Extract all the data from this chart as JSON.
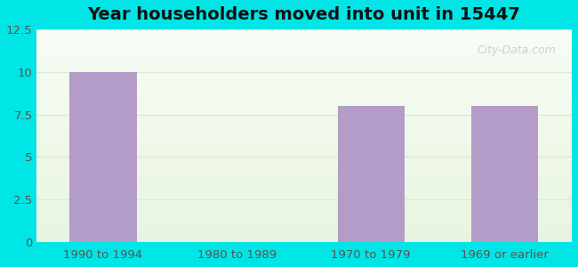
{
  "title": "Year householders moved into unit in 15447",
  "categories": [
    "1990 to 1994",
    "1980 to 1989",
    "1970 to 1979",
    "1969 or earlier"
  ],
  "values": [
    10,
    0,
    8,
    8
  ],
  "bar_color": "#b39cc8",
  "ylim": [
    0,
    12.5
  ],
  "yticks": [
    0,
    2.5,
    5,
    7.5,
    10,
    12.5
  ],
  "background_outer": "#00e5e5",
  "background_inner_top": "#f5faf0",
  "background_inner_bottom": "#e8f4e0",
  "grid_color": "#d8ecd0",
  "title_fontsize": 14,
  "tick_fontsize": 9.5,
  "watermark": "City-Data.com",
  "watermark_color": "#c8c8c8"
}
